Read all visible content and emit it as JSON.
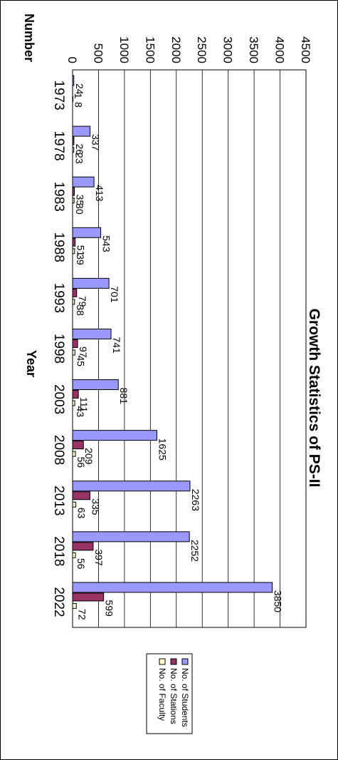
{
  "chart_data": {
    "type": "bar",
    "orientation": "horizontal",
    "title": "Growth Statistics of PS-II",
    "xlabel": "Number",
    "ylabel": "Year",
    "xlim": [
      0,
      4500
    ],
    "x_ticks": [
      0,
      500,
      1000,
      1500,
      2000,
      2500,
      3000,
      3500,
      4000,
      4500
    ],
    "grid": true,
    "legend_position": "bottom",
    "categories": [
      "1973",
      "1978",
      "1983",
      "1988",
      "1993",
      "1998",
      "2003",
      "2008",
      "2013",
      "2018",
      "2022"
    ],
    "series": [
      {
        "name": "No. of Students",
        "color": "#9999ff",
        "values": [
          24,
          337,
          413,
          543,
          701,
          741,
          881,
          1625,
          2263,
          2252,
          3850
        ]
      },
      {
        "name": "No. of Stations",
        "color": "#993366",
        "values": [
          1,
          26,
          35,
          51,
          79,
          97,
          111,
          209,
          335,
          397,
          599
        ]
      },
      {
        "name": "No. of Faculty",
        "color": "#ffffcc",
        "values": [
          8,
          23,
          30,
          39,
          38,
          45,
          43,
          56,
          63,
          56,
          72
        ]
      }
    ]
  }
}
